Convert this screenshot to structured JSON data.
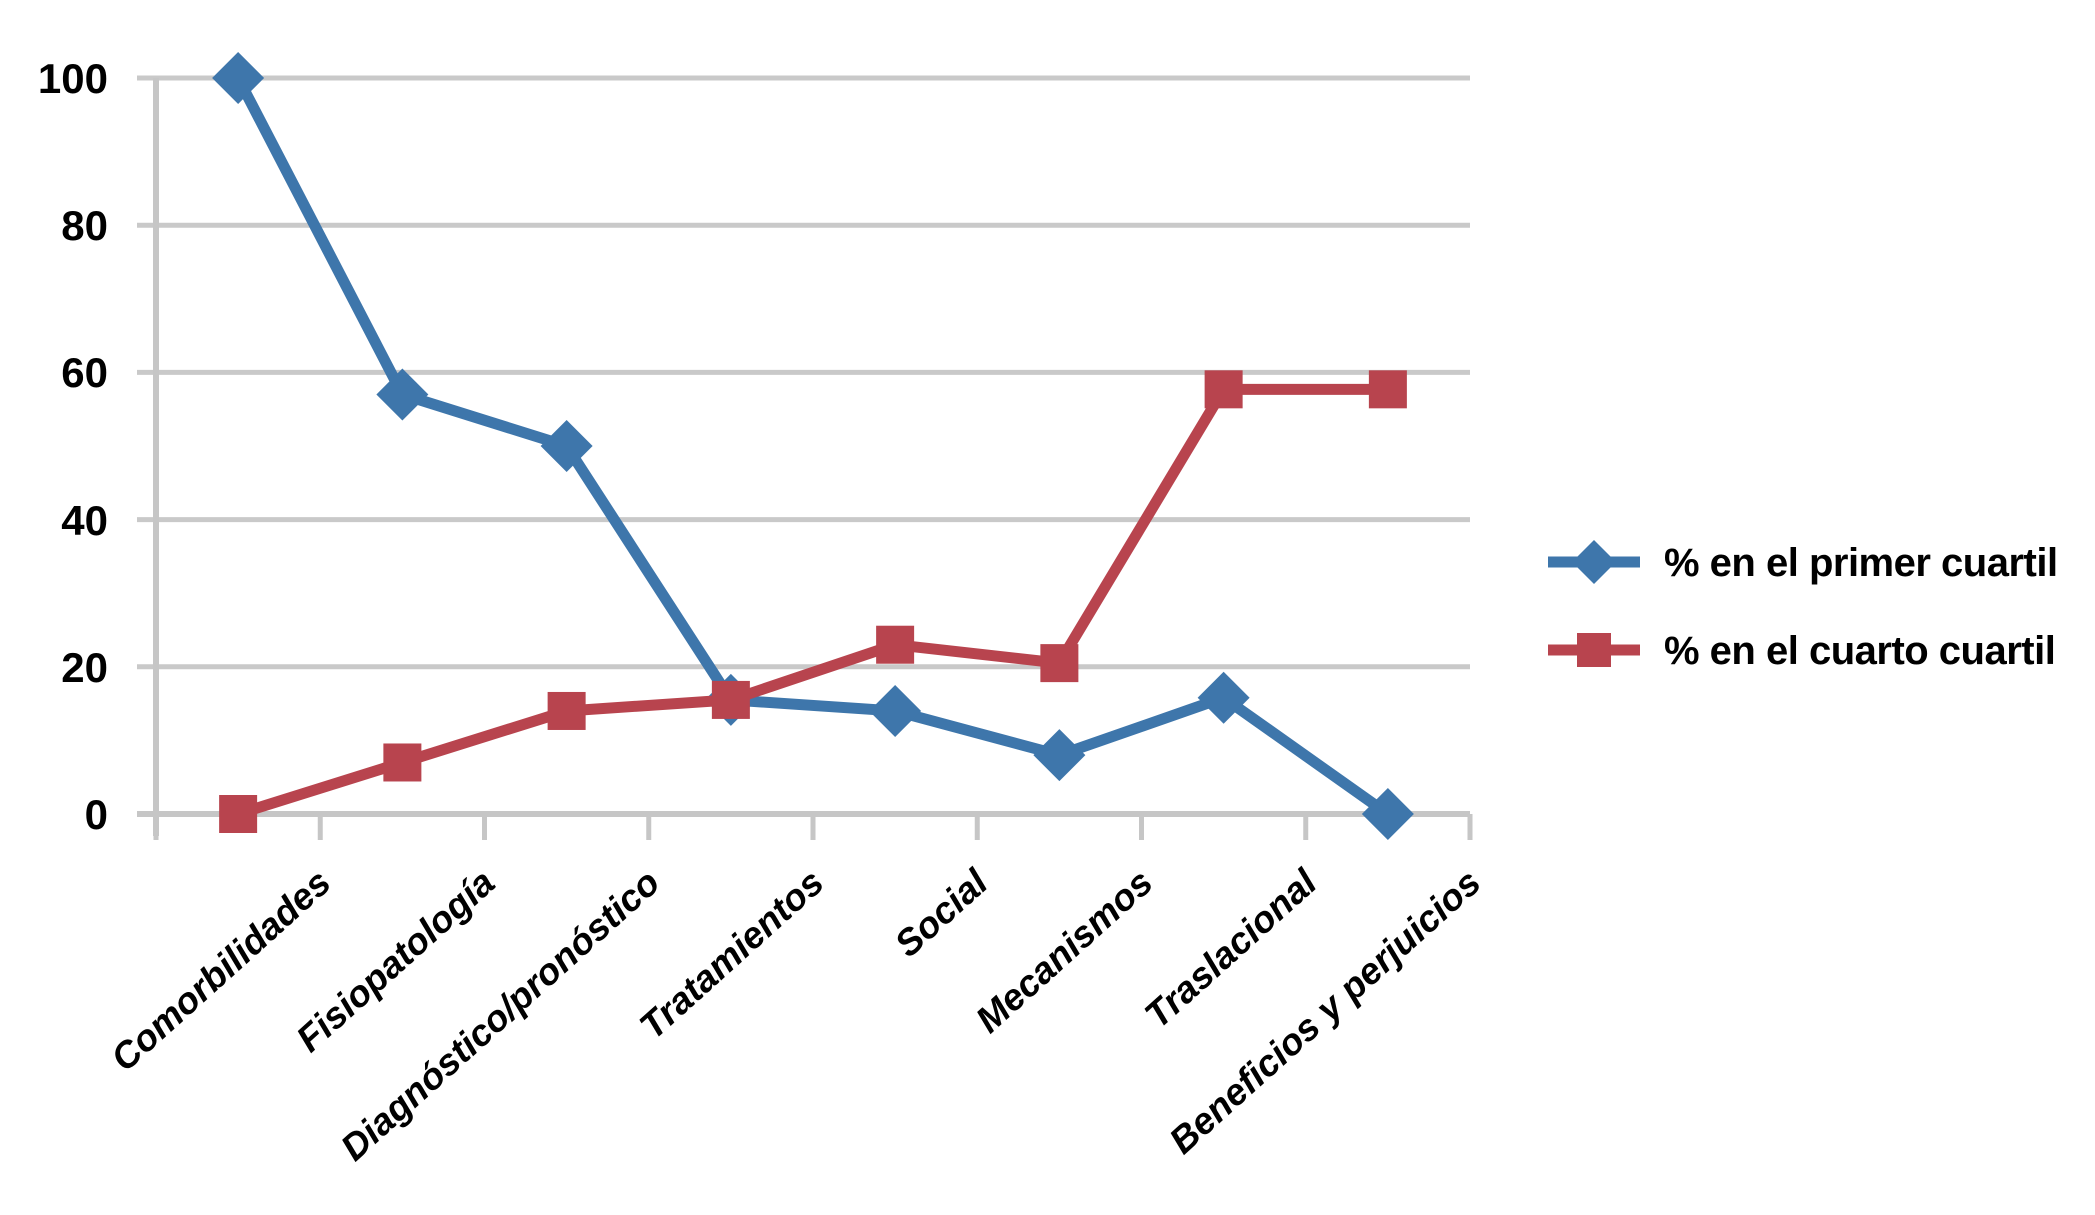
{
  "chart_data": {
    "type": "line",
    "title": "",
    "xlabel": "",
    "ylabel": "",
    "categories": [
      "Comorbilidades",
      "Fisiopatología",
      "Diagnóstico/pronóstico",
      "Tratamientos",
      "Social",
      "Mecanismos",
      "Traslacional",
      "Beneficios y perjuicios"
    ],
    "series": [
      {
        "name": "% en el primer cuartil",
        "marker": "diamond",
        "color": "#3E76AB",
        "values": [
          100,
          57,
          50,
          15.5,
          14,
          8,
          15.8,
          0
        ]
      },
      {
        "name": "% en el cuarto cuartil",
        "marker": "square",
        "color": "#B8444E",
        "values": [
          0,
          7,
          14,
          15.5,
          23,
          20.5,
          57.7,
          57.7
        ]
      }
    ],
    "ylim": [
      0,
      100
    ],
    "yticks": [
      0,
      20,
      40,
      60,
      80,
      100
    ],
    "grid": "horizontal",
    "legend_position": "right-middle",
    "gridline_color": "#C9C9C9",
    "axis_color": "#C6C6C6",
    "text_color": "#000000",
    "background": "#FFFFFF"
  }
}
